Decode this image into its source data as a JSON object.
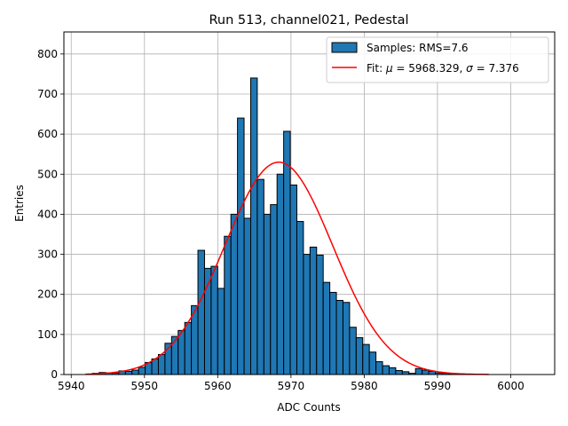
{
  "chart_data": {
    "type": "bar",
    "title": "Run 513, channel021, Pedestal",
    "xlabel": "ADC Counts",
    "ylabel": "Entries",
    "xlim": [
      5939,
      6006
    ],
    "ylim": [
      0,
      855
    ],
    "xticks": [
      5940,
      5950,
      5960,
      5970,
      5980,
      5990,
      6000
    ],
    "yticks": [
      0,
      100,
      200,
      300,
      400,
      500,
      600,
      700,
      800
    ],
    "grid": true,
    "legend_position": "top-right",
    "histogram": {
      "name": "Samples: RMS=7.6",
      "color": "#1f77b4",
      "edgecolor": "#000000",
      "bin_start": 5942.0,
      "bin_width": 0.9,
      "values": [
        1,
        3,
        5,
        4,
        4,
        9,
        8,
        11,
        18,
        30,
        39,
        50,
        78,
        95,
        110,
        130,
        172,
        310,
        265,
        270,
        215,
        345,
        400,
        640,
        390,
        740,
        487,
        400,
        424,
        500,
        607,
        473,
        382,
        300,
        318,
        298,
        230,
        205,
        185,
        180,
        118,
        92,
        75,
        56,
        32,
        22,
        17,
        10,
        7,
        3,
        15,
        11,
        8,
        4,
        3,
        2,
        1,
        1,
        1
      ]
    },
    "fit": {
      "name": "Fit: μ = 5968.329, σ = 7.376",
      "label_prefix": "Fit: ",
      "mu_symbol": "μ",
      "sigma_symbol": "σ",
      "mu_text": " = 5968.329, ",
      "sigma_text": " = 7.376",
      "color": "#ff0000",
      "mu": 5968.329,
      "sigma": 7.376,
      "amplitude": 530,
      "x_range": [
        5942,
        5997
      ]
    }
  }
}
